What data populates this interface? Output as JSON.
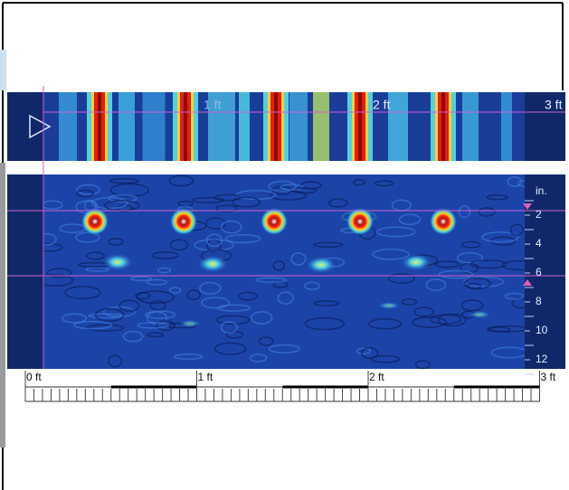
{
  "top_strip": {
    "distance_labels": [
      "1 ft",
      "2 ft",
      "3 ft"
    ]
  },
  "depth_scale": {
    "unit": "in.",
    "labels": [
      "2",
      "4",
      "6",
      "8",
      "10",
      "12"
    ]
  },
  "bottom_ruler": {
    "labels": [
      "0 ft",
      "1 ft",
      "2 ft",
      "3 ft"
    ]
  }
}
